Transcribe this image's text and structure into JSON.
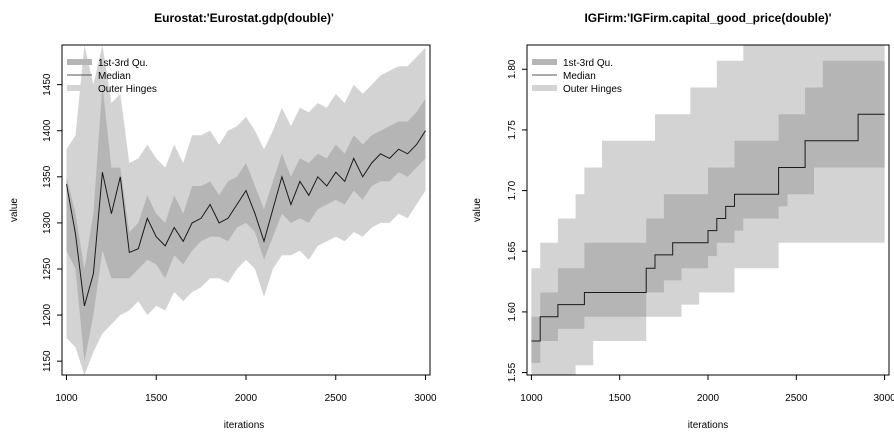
{
  "chart_data": [
    {
      "type": "area",
      "title": "Eurostat:'Eurostat.gdp(double)'",
      "xlabel": "iterations",
      "ylabel": "value",
      "xlim": [
        975,
        3025
      ],
      "ylim": [
        1135,
        1493
      ],
      "xticks": [
        "1000",
        "1500",
        "2000",
        "2500",
        "3000"
      ],
      "yticks": [
        "1150",
        "1200",
        "1250",
        "1300",
        "1350",
        "1400",
        "1450"
      ],
      "legend": {
        "position": "top-left",
        "entries": [
          "1st-3rd Qu.",
          "Median",
          "Outer Hinges"
        ]
      },
      "x": [
        1000,
        1050,
        1100,
        1150,
        1200,
        1250,
        1300,
        1350,
        1400,
        1450,
        1500,
        1550,
        1600,
        1650,
        1700,
        1750,
        1800,
        1850,
        1900,
        1950,
        2000,
        2050,
        2100,
        2150,
        2200,
        2250,
        2300,
        2350,
        2400,
        2450,
        2500,
        2550,
        2600,
        2650,
        2700,
        2750,
        2800,
        2850,
        2900,
        2950,
        3000
      ],
      "series": [
        {
          "name": "Median",
          "values": [
            1342,
            1288,
            1210,
            1245,
            1355,
            1310,
            1350,
            1268,
            1272,
            1305,
            1285,
            1275,
            1295,
            1280,
            1300,
            1305,
            1320,
            1300,
            1305,
            1320,
            1335,
            1310,
            1280,
            1315,
            1350,
            1320,
            1345,
            1330,
            1350,
            1340,
            1355,
            1345,
            1370,
            1350,
            1365,
            1375,
            1370,
            1380,
            1375,
            1385,
            1400
          ]
        },
        {
          "name": "1st-3rd Qu. low",
          "values": [
            1270,
            1250,
            1150,
            1200,
            1270,
            1240,
            1240,
            1240,
            1250,
            1260,
            1255,
            1240,
            1265,
            1255,
            1270,
            1280,
            1285,
            1285,
            1280,
            1295,
            1300,
            1290,
            1260,
            1285,
            1310,
            1300,
            1305,
            1300,
            1315,
            1320,
            1325,
            1320,
            1335,
            1325,
            1340,
            1345,
            1345,
            1355,
            1350,
            1360,
            1370
          ]
        },
        {
          "name": "1st-3rd Qu. high",
          "values": [
            1350,
            1310,
            1250,
            1310,
            1450,
            1360,
            1360,
            1290,
            1300,
            1330,
            1310,
            1300,
            1330,
            1310,
            1340,
            1340,
            1345,
            1330,
            1345,
            1350,
            1365,
            1340,
            1315,
            1345,
            1375,
            1350,
            1370,
            1365,
            1375,
            1370,
            1385,
            1375,
            1395,
            1385,
            1395,
            1400,
            1405,
            1410,
            1410,
            1420,
            1435
          ]
        },
        {
          "name": "Outer Hinges low",
          "values": [
            1175,
            1165,
            1130,
            1160,
            1180,
            1190,
            1200,
            1205,
            1215,
            1200,
            1210,
            1205,
            1225,
            1215,
            1225,
            1230,
            1240,
            1240,
            1235,
            1250,
            1260,
            1250,
            1220,
            1250,
            1265,
            1265,
            1270,
            1260,
            1275,
            1280,
            1285,
            1280,
            1290,
            1285,
            1295,
            1300,
            1300,
            1310,
            1305,
            1320,
            1335
          ]
        },
        {
          "name": "Outer Hinges high",
          "values": [
            1380,
            1395,
            1493,
            1450,
            1493,
            1430,
            1440,
            1365,
            1370,
            1385,
            1370,
            1360,
            1385,
            1365,
            1395,
            1395,
            1400,
            1385,
            1400,
            1405,
            1415,
            1400,
            1380,
            1400,
            1425,
            1405,
            1425,
            1420,
            1430,
            1425,
            1440,
            1430,
            1450,
            1440,
            1450,
            1460,
            1465,
            1470,
            1470,
            1480,
            1490
          ]
        }
      ]
    },
    {
      "type": "area",
      "title": "IGFirm:'IGFirm.capital_good_price(double)'",
      "xlabel": "iterations",
      "ylabel": "value",
      "xlim": [
        975,
        3025
      ],
      "ylim": [
        1.548,
        1.82
      ],
      "xticks": [
        "1000",
        "1500",
        "2000",
        "2500",
        "3000"
      ],
      "yticks": [
        "1.55",
        "1.60",
        "1.65",
        "1.70",
        "1.75",
        "1.80"
      ],
      "legend": {
        "position": "top-left",
        "entries": [
          "1st-3rd Qu.",
          "Median",
          "Outer Hinges"
        ]
      },
      "x": [
        1000,
        1050,
        1100,
        1150,
        1200,
        1250,
        1300,
        1350,
        1400,
        1450,
        1500,
        1550,
        1600,
        1650,
        1700,
        1750,
        1800,
        1850,
        1900,
        1950,
        2000,
        2050,
        2100,
        2150,
        2200,
        2250,
        2300,
        2350,
        2400,
        2450,
        2500,
        2550,
        2600,
        2650,
        2700,
        2750,
        2800,
        2850,
        2900,
        2950,
        3000
      ],
      "series": [
        {
          "name": "Median",
          "values": [
            1.576,
            1.596,
            1.596,
            1.606,
            1.606,
            1.606,
            1.616,
            1.616,
            1.616,
            1.616,
            1.616,
            1.616,
            1.616,
            1.636,
            1.647,
            1.647,
            1.657,
            1.657,
            1.657,
            1.657,
            1.667,
            1.677,
            1.687,
            1.697,
            1.697,
            1.697,
            1.697,
            1.697,
            1.719,
            1.719,
            1.719,
            1.741,
            1.741,
            1.741,
            1.741,
            1.741,
            1.741,
            1.763,
            1.763,
            1.763,
            1.763
          ]
        },
        {
          "name": "1st-3rd Qu. low",
          "values": [
            1.558,
            1.576,
            1.576,
            1.586,
            1.586,
            1.586,
            1.596,
            1.596,
            1.596,
            1.596,
            1.596,
            1.596,
            1.596,
            1.616,
            1.616,
            1.626,
            1.626,
            1.636,
            1.636,
            1.636,
            1.646,
            1.657,
            1.657,
            1.667,
            1.677,
            1.677,
            1.677,
            1.677,
            1.687,
            1.697,
            1.697,
            1.697,
            1.719,
            1.719,
            1.719,
            1.719,
            1.719,
            1.719,
            1.719,
            1.719,
            1.719
          ]
        },
        {
          "name": "1st-3rd Qu. high",
          "values": [
            1.596,
            1.616,
            1.616,
            1.636,
            1.636,
            1.636,
            1.657,
            1.657,
            1.657,
            1.657,
            1.657,
            1.657,
            1.657,
            1.677,
            1.677,
            1.697,
            1.697,
            1.697,
            1.697,
            1.697,
            1.719,
            1.719,
            1.719,
            1.741,
            1.741,
            1.741,
            1.741,
            1.741,
            1.763,
            1.763,
            1.763,
            1.785,
            1.785,
            1.807,
            1.807,
            1.807,
            1.807,
            1.807,
            1.807,
            1.807,
            1.807
          ]
        },
        {
          "name": "Outer Hinges low",
          "values": [
            1.548,
            1.548,
            1.548,
            1.548,
            1.548,
            1.556,
            1.556,
            1.576,
            1.576,
            1.576,
            1.576,
            1.576,
            1.576,
            1.596,
            1.596,
            1.596,
            1.596,
            1.606,
            1.606,
            1.616,
            1.616,
            1.616,
            1.616,
            1.636,
            1.636,
            1.636,
            1.636,
            1.636,
            1.657,
            1.657,
            1.657,
            1.657,
            1.657,
            1.657,
            1.657,
            1.657,
            1.657,
            1.657,
            1.657,
            1.657,
            1.657
          ]
        },
        {
          "name": "Outer Hinges high",
          "values": [
            1.636,
            1.657,
            1.657,
            1.677,
            1.677,
            1.697,
            1.719,
            1.719,
            1.741,
            1.741,
            1.741,
            1.741,
            1.741,
            1.741,
            1.763,
            1.763,
            1.763,
            1.763,
            1.785,
            1.785,
            1.785,
            1.807,
            1.807,
            1.807,
            1.82,
            1.82,
            1.82,
            1.82,
            1.82,
            1.82,
            1.82,
            1.82,
            1.82,
            1.82,
            1.82,
            1.82,
            1.82,
            1.82,
            1.82,
            1.82,
            1.82
          ]
        }
      ]
    }
  ]
}
